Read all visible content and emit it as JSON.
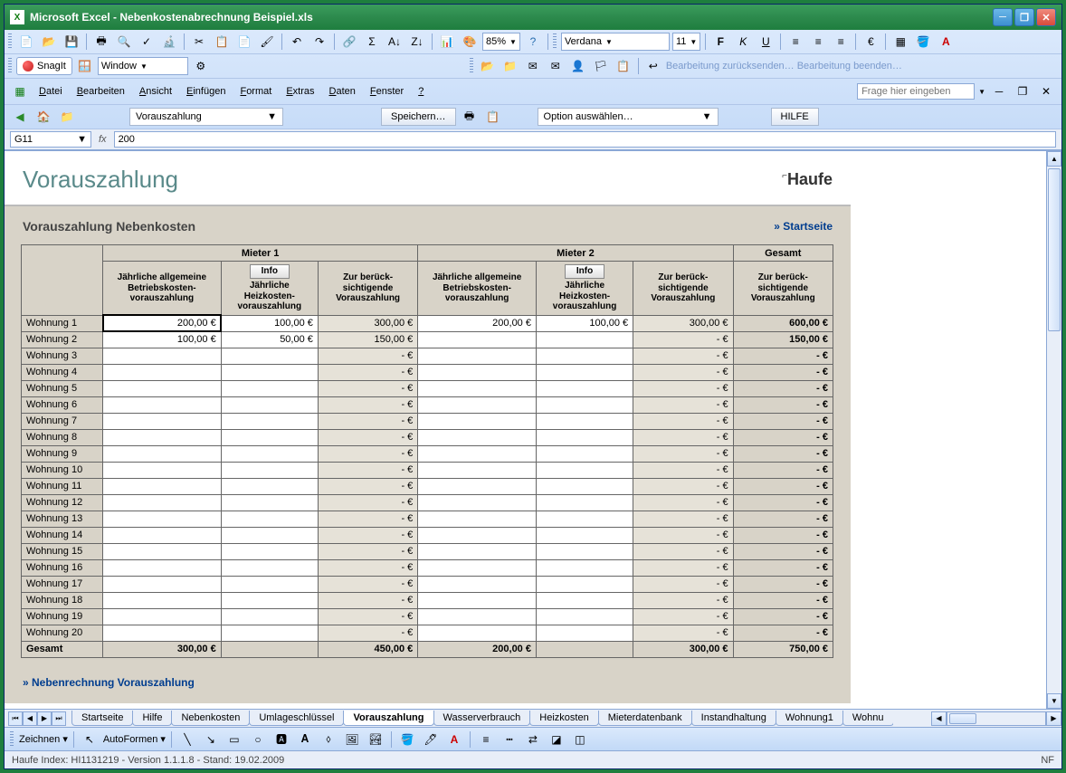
{
  "window": {
    "app": "Microsoft Excel",
    "file": "Nebenkostenabrechnung Beispiel.xls"
  },
  "toolbar": {
    "font_name": "Verdana",
    "font_size": "11",
    "zoom": "85%",
    "snagit_label": "SnagIt",
    "snagit_mode": "Window",
    "review1": "Bearbeitung zurücksenden…",
    "review2": "Bearbeitung beenden…"
  },
  "menu": {
    "items": [
      "Datei",
      "Bearbeiten",
      "Ansicht",
      "Einfügen",
      "Format",
      "Extras",
      "Daten",
      "Fenster",
      "?"
    ],
    "help_placeholder": "Frage hier eingeben"
  },
  "nav": {
    "page": "Vorauszahlung",
    "save": "Speichern…",
    "option": "Option auswählen…",
    "help": "HILFE"
  },
  "cell": {
    "ref": "G11",
    "formula": "200"
  },
  "doc": {
    "title": "Vorauszahlung",
    "brand": "Haufe",
    "subtitle": "Vorauszahlung Nebenkosten",
    "start_link": "» Startseite",
    "bottom_link": "» Nebenrechnung Vorauszahlung",
    "info_label": "Info",
    "group_headers": [
      "Mieter 1",
      "Mieter 2",
      "Gesamt"
    ],
    "col_headers": [
      "Jährliche allgemeine Betriebskosten-vorauszahlung",
      "Jährliche Heizkosten-vorauszahlung",
      "Zur berück-sichtigende Vorauszahlung",
      "Jährliche allgemeine Betriebskosten-vorauszahlung",
      "Jährliche Heizkosten-vorauszahlung",
      "Zur berück-sichtigende Vorauszahlung",
      "Zur berück-sichtigende Vorauszahlung"
    ],
    "rows": [
      {
        "label": "Wohnung 1",
        "m1a": "200,00 €",
        "m1b": "100,00 €",
        "m1c": "300,00 €",
        "m2a": "200,00 €",
        "m2b": "100,00 €",
        "m2c": "300,00 €",
        "g": "600,00 €"
      },
      {
        "label": "Wohnung 2",
        "m1a": "100,00 €",
        "m1b": "50,00 €",
        "m1c": "150,00 €",
        "m2a": "",
        "m2b": "",
        "m2c": "-   €",
        "g": "150,00 €"
      },
      {
        "label": "Wohnung 3",
        "m1a": "",
        "m1b": "",
        "m1c": "-   €",
        "m2a": "",
        "m2b": "",
        "m2c": "-   €",
        "g": "-   €"
      },
      {
        "label": "Wohnung 4",
        "m1a": "",
        "m1b": "",
        "m1c": "-   €",
        "m2a": "",
        "m2b": "",
        "m2c": "-   €",
        "g": "-   €"
      },
      {
        "label": "Wohnung 5",
        "m1a": "",
        "m1b": "",
        "m1c": "-   €",
        "m2a": "",
        "m2b": "",
        "m2c": "-   €",
        "g": "-   €"
      },
      {
        "label": "Wohnung 6",
        "m1a": "",
        "m1b": "",
        "m1c": "-   €",
        "m2a": "",
        "m2b": "",
        "m2c": "-   €",
        "g": "-   €"
      },
      {
        "label": "Wohnung 7",
        "m1a": "",
        "m1b": "",
        "m1c": "-   €",
        "m2a": "",
        "m2b": "",
        "m2c": "-   €",
        "g": "-   €"
      },
      {
        "label": "Wohnung 8",
        "m1a": "",
        "m1b": "",
        "m1c": "-   €",
        "m2a": "",
        "m2b": "",
        "m2c": "-   €",
        "g": "-   €"
      },
      {
        "label": "Wohnung 9",
        "m1a": "",
        "m1b": "",
        "m1c": "-   €",
        "m2a": "",
        "m2b": "",
        "m2c": "-   €",
        "g": "-   €"
      },
      {
        "label": "Wohnung 10",
        "m1a": "",
        "m1b": "",
        "m1c": "-   €",
        "m2a": "",
        "m2b": "",
        "m2c": "-   €",
        "g": "-   €"
      },
      {
        "label": "Wohnung 11",
        "m1a": "",
        "m1b": "",
        "m1c": "-   €",
        "m2a": "",
        "m2b": "",
        "m2c": "-   €",
        "g": "-   €"
      },
      {
        "label": "Wohnung 12",
        "m1a": "",
        "m1b": "",
        "m1c": "-   €",
        "m2a": "",
        "m2b": "",
        "m2c": "-   €",
        "g": "-   €"
      },
      {
        "label": "Wohnung 13",
        "m1a": "",
        "m1b": "",
        "m1c": "-   €",
        "m2a": "",
        "m2b": "",
        "m2c": "-   €",
        "g": "-   €"
      },
      {
        "label": "Wohnung 14",
        "m1a": "",
        "m1b": "",
        "m1c": "-   €",
        "m2a": "",
        "m2b": "",
        "m2c": "-   €",
        "g": "-   €"
      },
      {
        "label": "Wohnung 15",
        "m1a": "",
        "m1b": "",
        "m1c": "-   €",
        "m2a": "",
        "m2b": "",
        "m2c": "-   €",
        "g": "-   €"
      },
      {
        "label": "Wohnung 16",
        "m1a": "",
        "m1b": "",
        "m1c": "-   €",
        "m2a": "",
        "m2b": "",
        "m2c": "-   €",
        "g": "-   €"
      },
      {
        "label": "Wohnung 17",
        "m1a": "",
        "m1b": "",
        "m1c": "-   €",
        "m2a": "",
        "m2b": "",
        "m2c": "-   €",
        "g": "-   €"
      },
      {
        "label": "Wohnung 18",
        "m1a": "",
        "m1b": "",
        "m1c": "-   €",
        "m2a": "",
        "m2b": "",
        "m2c": "-   €",
        "g": "-   €"
      },
      {
        "label": "Wohnung 19",
        "m1a": "",
        "m1b": "",
        "m1c": "-   €",
        "m2a": "",
        "m2b": "",
        "m2c": "-   €",
        "g": "-   €"
      },
      {
        "label": "Wohnung 20",
        "m1a": "",
        "m1b": "",
        "m1c": "-   €",
        "m2a": "",
        "m2b": "",
        "m2c": "-   €",
        "g": "-   €"
      }
    ],
    "totals": {
      "label": "Gesamt",
      "m1a": "300,00 €",
      "m1b": "",
      "m1c": "450,00 €",
      "m2a": "200,00 €",
      "m2b": "",
      "m2c": "300,00 €",
      "g": "750,00 €"
    }
  },
  "tabs": [
    "Startseite",
    "Hilfe",
    "Nebenkosten",
    "Umlageschlüssel",
    "Vorauszahlung",
    "Wasserverbrauch",
    "Heizkosten",
    "Mieterdatenbank",
    "Instandhaltung",
    "Wohnung1",
    "Wohnu"
  ],
  "active_tab": "Vorauszahlung",
  "draw": {
    "label": "Zeichnen",
    "autoshapes": "AutoFormen"
  },
  "status": {
    "left": "Haufe Index: HI1131219 - Version 1.1.1.8 - Stand: 19.02.2009",
    "right": "NF"
  }
}
